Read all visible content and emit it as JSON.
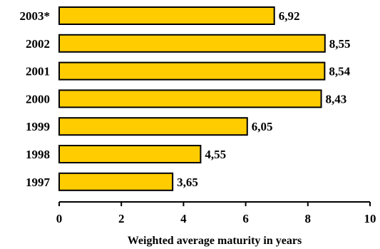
{
  "chart_data": {
    "type": "bar",
    "orientation": "horizontal",
    "categories": [
      "2003*",
      "2002",
      "2001",
      "2000",
      "1999",
      "1998",
      "1997"
    ],
    "values": [
      6.92,
      8.55,
      8.54,
      8.43,
      6.05,
      4.55,
      3.65
    ],
    "data_labels": [
      "6,92",
      "8,55",
      "8,54",
      "8,43",
      "6,05",
      "4,55",
      "3,65"
    ],
    "xlabel": "Weighted average maturity in years",
    "ylabel": "",
    "title": "",
    "xlim": [
      0,
      10
    ],
    "x_ticks": [
      0,
      2,
      4,
      6,
      8,
      10
    ],
    "x_tick_labels": [
      "0",
      "2",
      "4",
      "6",
      "8",
      "10"
    ],
    "grid": false,
    "legend": "none",
    "colors": {
      "bar_fill": "#FFCC00",
      "bar_stroke": "#000000",
      "axis": "#000000",
      "text": "#000000"
    }
  }
}
